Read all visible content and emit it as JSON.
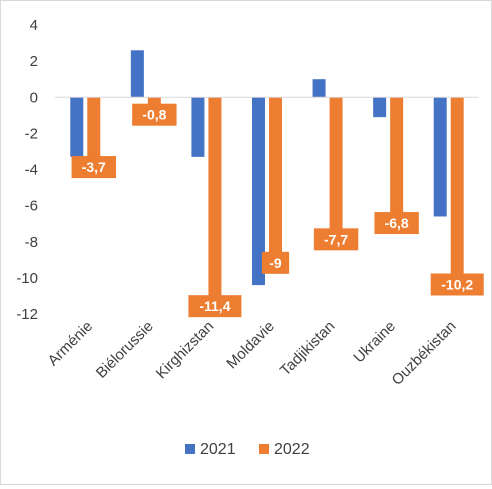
{
  "chart_data": {
    "type": "bar",
    "categories": [
      "Arménie",
      "Biélorussie",
      "Kirghizstan",
      "Moldavie",
      "Tadjikistan",
      "Ukraine",
      "Ouzbékistan"
    ],
    "series": [
      {
        "name": "2021",
        "values": [
          -3.3,
          2.6,
          -3.3,
          -10.4,
          1.0,
          -1.1,
          -6.6
        ],
        "color": "#4472C4"
      },
      {
        "name": "2022",
        "values": [
          -3.7,
          -0.8,
          -11.4,
          -9,
          -7.7,
          -6.8,
          -10.2
        ],
        "color": "#ED7D31",
        "data_labels": [
          "-3,7",
          "-0,8",
          "-11,4",
          "-9",
          "-7,7",
          "-6,8",
          "-10,2"
        ]
      }
    ],
    "ylim": [
      -12,
      4
    ],
    "yticks": [
      -12,
      -10,
      -8,
      -6,
      -4,
      -2,
      0,
      2,
      4
    ],
    "grid": false,
    "legend": "bottom",
    "title": "",
    "xlabel": "",
    "ylabel": ""
  }
}
